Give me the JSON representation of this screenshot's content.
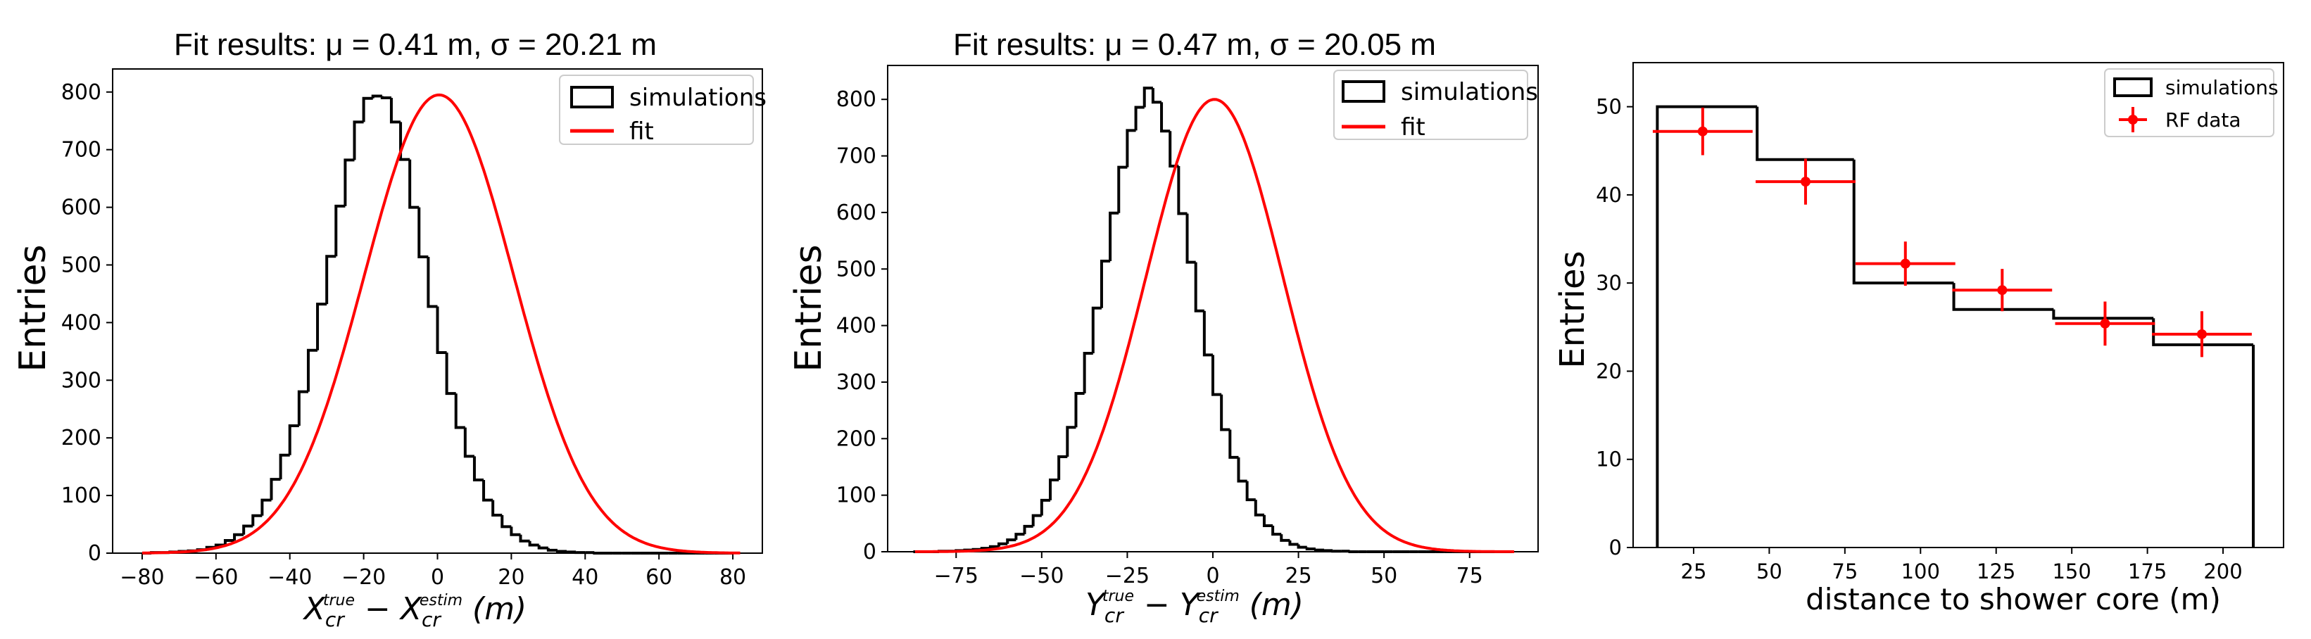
{
  "chart_data": [
    {
      "type": "bar",
      "title": "Fit results: μ = 0.41 m, σ = 20.21 m",
      "ylabel": "Entries",
      "xlabel_main": "X",
      "xlabel_sub1": "cr",
      "xlabel_sup1": "true",
      "xlabel_mid": " − X",
      "xlabel_sub2": "cr",
      "xlabel_sup2": "estim",
      "xlabel_unit": " (m)",
      "xlim": [
        -88,
        88
      ],
      "ylim": [
        0,
        840
      ],
      "xticks": [
        -80,
        -60,
        -40,
        -20,
        0,
        20,
        40,
        60,
        80
      ],
      "yticks": [
        0,
        100,
        200,
        300,
        400,
        500,
        600,
        700,
        800
      ],
      "hist_start": -80,
      "bin_width": 2.5,
      "hist_values": [
        0,
        1,
        1,
        2,
        3,
        4,
        6,
        10,
        14,
        22,
        32,
        47,
        65,
        92,
        128,
        170,
        221,
        280,
        352,
        432,
        515,
        602,
        682,
        748,
        789,
        793,
        790,
        748,
        683,
        600,
        514,
        428,
        348,
        277,
        218,
        168,
        127,
        92,
        66,
        46,
        32,
        21,
        14,
        9,
        5,
        3,
        2,
        1,
        1,
        0,
        0,
        0,
        0,
        0,
        0,
        0,
        0,
        0,
        0,
        0,
        0,
        0,
        0,
        0
      ],
      "fit": {
        "mu": 0.41,
        "sigma": 20.21,
        "amp": 795,
        "range": [
          -80,
          82
        ]
      },
      "legend": [
        "simulations",
        "fit"
      ],
      "legend_position": "top-right"
    },
    {
      "type": "bar",
      "title": "Fit results: μ = 0.47 m, σ = 20.05 m",
      "ylabel": "Entries",
      "xlabel_main": "Y",
      "xlabel_sub1": "cr",
      "xlabel_sup1": "true",
      "xlabel_mid": " − Y",
      "xlabel_sub2": "cr",
      "xlabel_sup2": "estim",
      "xlabel_unit": " (m)",
      "xlim": [
        -95,
        95
      ],
      "ylim": [
        0,
        860
      ],
      "xticks": [
        -75,
        -50,
        -25,
        0,
        25,
        50,
        75
      ],
      "yticks": [
        0,
        100,
        200,
        300,
        400,
        500,
        600,
        700,
        800
      ],
      "hist_start": -87.5,
      "bin_width": 2.5,
      "hist_values": [
        0,
        0,
        0,
        1,
        1,
        2,
        3,
        4,
        6,
        9,
        14,
        21,
        31,
        45,
        64,
        91,
        127,
        168,
        220,
        280,
        351,
        431,
        514,
        599,
        680,
        745,
        786,
        820,
        795,
        744,
        682,
        598,
        512,
        426,
        348,
        278,
        216,
        167,
        125,
        92,
        65,
        46,
        31,
        20,
        13,
        8,
        5,
        3,
        2,
        1,
        1,
        0,
        0,
        0,
        0,
        0,
        0,
        0,
        0,
        0,
        0,
        0,
        0,
        0,
        0,
        0,
        0,
        0,
        0,
        0
      ],
      "fit": {
        "mu": 0.47,
        "sigma": 20.05,
        "amp": 800,
        "range": [
          -87,
          88
        ]
      },
      "legend": [
        "simulations",
        "fit"
      ],
      "legend_position": "top-right"
    },
    {
      "type": "bar",
      "title": "",
      "ylabel": "Entries",
      "xlabel": "distance to shower core (m)",
      "xlim": [
        5,
        220
      ],
      "ylim": [
        0,
        55
      ],
      "xticks": [
        25,
        50,
        75,
        100,
        125,
        150,
        175,
        200
      ],
      "yticks": [
        0,
        10,
        20,
        30,
        40,
        50
      ],
      "bin_edges": [
        13,
        46,
        78,
        111,
        144,
        177,
        210
      ],
      "sim_values": [
        50,
        44,
        30,
        27,
        26,
        23
      ],
      "rf_data": [
        {
          "x": 28,
          "y": 47.2,
          "xerr": 16.5,
          "yerr": 2.7
        },
        {
          "x": 62,
          "y": 41.5,
          "xerr": 16.5,
          "yerr": 2.6
        },
        {
          "x": 95,
          "y": 32.2,
          "xerr": 16.5,
          "yerr": 2.5
        },
        {
          "x": 127,
          "y": 29.2,
          "xerr": 16.5,
          "yerr": 2.4
        },
        {
          "x": 161,
          "y": 25.4,
          "xerr": 16.5,
          "yerr": 2.5
        },
        {
          "x": 193,
          "y": 24.2,
          "xerr": 16.5,
          "yerr": 2.6
        }
      ],
      "legend": [
        "simulations",
        "RF data"
      ],
      "legend_position": "top-right"
    }
  ]
}
